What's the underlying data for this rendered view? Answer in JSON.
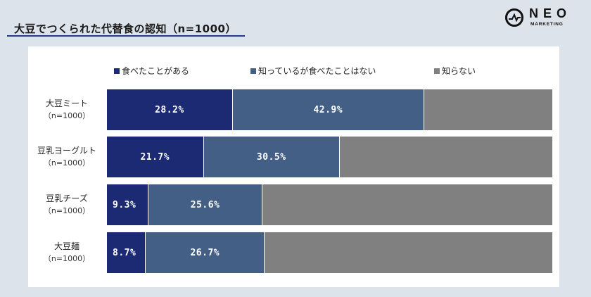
{
  "header": {
    "title": "大豆でつくられた代替食の認知（n=1000）",
    "logo_word": "NEO",
    "logo_sub": "MARKETING",
    "logo_icon": "pulse-circle-icon"
  },
  "chart_data": {
    "type": "bar",
    "orientation": "horizontal",
    "stacked": true,
    "title": "大豆でつくられた代替食の認知（n=1000）",
    "categories": [
      {
        "name": "大豆ミート",
        "n": "（n=1000）"
      },
      {
        "name": "豆乳ヨーグルト",
        "n": "（n=1000）"
      },
      {
        "name": "豆乳チーズ",
        "n": "（n=1000）"
      },
      {
        "name": "大豆麺",
        "n": "（n=1000）"
      }
    ],
    "series": [
      {
        "name": "食べたことがある",
        "color": "#1b2a72",
        "values": [
          28.2,
          21.7,
          9.3,
          8.7
        ],
        "labels": [
          "28.2%",
          "21.7%",
          "9.3%",
          "8.7%"
        ]
      },
      {
        "name": "知っているが食べたことはない",
        "color": "#435f85",
        "values": [
          42.9,
          30.5,
          25.6,
          26.7
        ],
        "labels": [
          "42.9%",
          "30.5%",
          "25.6%",
          "26.7%"
        ]
      },
      {
        "name": "知らない",
        "color": "#808080",
        "values": [
          28.9,
          47.8,
          65.1,
          64.6
        ],
        "labels": [
          "",
          "",
          "",
          ""
        ]
      }
    ],
    "xlim": [
      0,
      100
    ],
    "legend_position": "top",
    "grid": false
  }
}
